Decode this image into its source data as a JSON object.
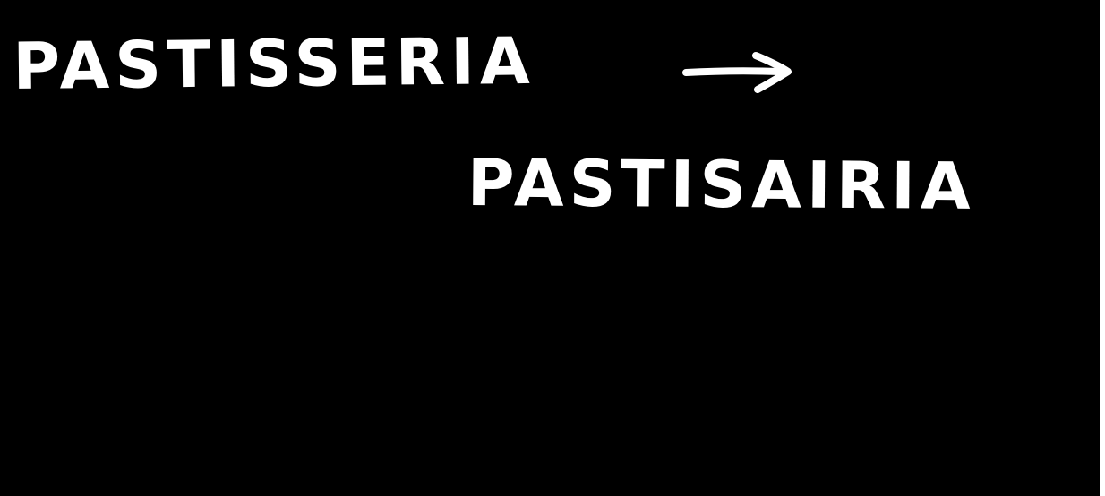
{
  "board": {
    "background": "#000000",
    "ink": "#ffffff"
  },
  "words": {
    "original": "PASTISSERIA",
    "respelled": "PASTISAIRIA"
  },
  "arrow": {
    "icon": "right-arrow-icon"
  }
}
